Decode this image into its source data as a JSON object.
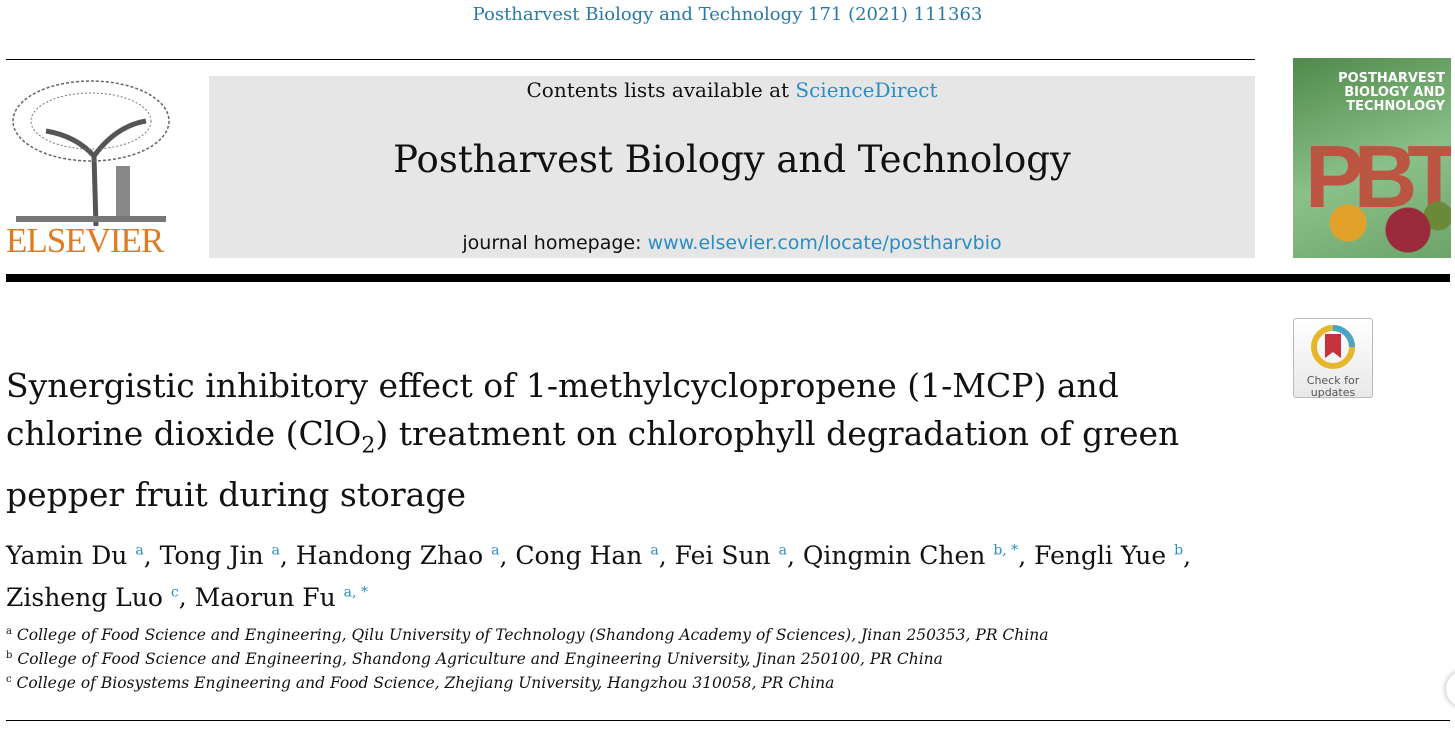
{
  "citation": "Postharvest Biology and Technology 171 (2021) 111363",
  "publisher_logo": {
    "text": "ELSEVIER",
    "color": "#e07b22"
  },
  "banner": {
    "contents_prefix": "Contents lists available at ",
    "contents_link": "ScienceDirect",
    "journal": "Postharvest Biology and Technology",
    "homepage_prefix": "journal homepage: ",
    "homepage_link": "www.elsevier.com/locate/postharvbio"
  },
  "cover": {
    "title": "POSTHARVEST BIOLOGY AND TECHNOLOGY",
    "letters": "PBT"
  },
  "check_updates": {
    "line1": "Check for",
    "line2": "updates"
  },
  "article": {
    "title_before": "Synergistic inhibitory effect of 1-methylcyclopropene (1-MCP) and chlorine dioxide (ClO",
    "title_sub": "2",
    "title_after": ") treatment on chlorophyll degradation of green pepper fruit during storage",
    "authors": [
      {
        "name": "Yamin Du",
        "aff": "a"
      },
      {
        "name": "Tong Jin",
        "aff": "a"
      },
      {
        "name": "Handong Zhao",
        "aff": "a"
      },
      {
        "name": "Cong Han",
        "aff": "a"
      },
      {
        "name": "Fei Sun",
        "aff": "a"
      },
      {
        "name": "Qingmin Chen",
        "aff": "b, *"
      },
      {
        "name": "Fengli Yue",
        "aff": "b"
      },
      {
        "name": "Zisheng Luo",
        "aff": "c"
      },
      {
        "name": "Maorun Fu",
        "aff": "a, *"
      }
    ],
    "affiliations": [
      {
        "label": "a",
        "text": "College of Food Science and Engineering, Qilu University of Technology (Shandong Academy of Sciences), Jinan 250353, PR China"
      },
      {
        "label": "b",
        "text": "College of Food Science and Engineering, Shandong Agriculture and Engineering University, Jinan 250100, PR China"
      },
      {
        "label": "c",
        "text": "College of Biosystems Engineering and Food Science, Zhejiang University, Hangzhou 310058, PR China"
      }
    ]
  },
  "colors": {
    "link": "#2a8ec4",
    "banner_bg": "#e6e6e6"
  }
}
